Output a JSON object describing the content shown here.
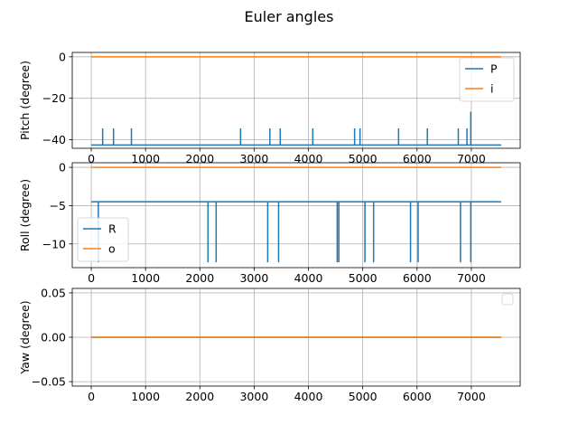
{
  "figure": {
    "title": "Euler angles"
  },
  "colors": {
    "series_blue": "#1f77b4",
    "series_orange": "#ff7f0e",
    "grid": "#b0b0b0"
  },
  "chart_data": [
    {
      "type": "line",
      "ylabel": "Pitch (degree)",
      "xlim": [
        -350,
        7900
      ],
      "ylim": [
        -44.1,
        2.1
      ],
      "xticks": [
        0,
        1000,
        2000,
        3000,
        4000,
        5000,
        6000,
        7000
      ],
      "yticks": [
        0,
        -20,
        -40
      ],
      "xtick_labels": [
        "0",
        "1000",
        "2000",
        "3000",
        "4000",
        "5000",
        "6000",
        "7000"
      ],
      "ytick_labels": [
        "0",
        "−20",
        "−40"
      ],
      "grid": true,
      "legend": {
        "placement": "top-right",
        "entries": [
          "P",
          "i"
        ]
      },
      "series": [
        {
          "name": "P",
          "color": "#1f77b4",
          "base": -42.5,
          "x_range": [
            0,
            7550
          ],
          "spikes": [
            {
              "x": 210,
              "y": -34.5
            },
            {
              "x": 410,
              "y": -34.5
            },
            {
              "x": 740,
              "y": -34.5
            },
            {
              "x": 2750,
              "y": -34.5
            },
            {
              "x": 3290,
              "y": -34.5
            },
            {
              "x": 3480,
              "y": -34.5
            },
            {
              "x": 4080,
              "y": -34.5
            },
            {
              "x": 4850,
              "y": -34.5
            },
            {
              "x": 4950,
              "y": -34.5
            },
            {
              "x": 5660,
              "y": -34.5
            },
            {
              "x": 6190,
              "y": -34.5
            },
            {
              "x": 6760,
              "y": -34.5
            },
            {
              "x": 6920,
              "y": -34.5
            },
            {
              "x": 6990,
              "y": -26.5
            }
          ]
        },
        {
          "name": "i",
          "color": "#ff7f0e",
          "base": 0,
          "x_range": [
            0,
            7550
          ],
          "spikes": []
        }
      ]
    },
    {
      "type": "line",
      "ylabel": "Roll (degree)",
      "xlim": [
        -350,
        7900
      ],
      "ylim": [
        -13.1,
        0.6
      ],
      "xticks": [
        0,
        1000,
        2000,
        3000,
        4000,
        5000,
        6000,
        7000
      ],
      "yticks": [
        0,
        -5,
        -10
      ],
      "xtick_labels": [
        "0",
        "1000",
        "2000",
        "3000",
        "4000",
        "5000",
        "6000",
        "7000"
      ],
      "ytick_labels": [
        "0",
        "−5",
        "−10"
      ],
      "grid": true,
      "legend": {
        "placement": "bottom-left",
        "entries": [
          "R",
          "o"
        ]
      },
      "series": [
        {
          "name": "R",
          "color": "#1f77b4",
          "base": -4.5,
          "x_range": [
            0,
            7550
          ],
          "spikes": [
            {
              "x": 130,
              "y": -12.4
            },
            {
              "x": 2150,
              "y": -12.4
            },
            {
              "x": 2300,
              "y": -12.4
            },
            {
              "x": 3250,
              "y": -12.4
            },
            {
              "x": 3450,
              "y": -12.4
            },
            {
              "x": 4530,
              "y": -12.4
            },
            {
              "x": 4560,
              "y": -12.4
            },
            {
              "x": 5040,
              "y": -12.4
            },
            {
              "x": 5200,
              "y": -12.4
            },
            {
              "x": 5880,
              "y": -12.4
            },
            {
              "x": 6020,
              "y": -12.4
            },
            {
              "x": 6800,
              "y": -12.4
            },
            {
              "x": 6990,
              "y": -12.4
            }
          ]
        },
        {
          "name": "o",
          "color": "#ff7f0e",
          "base": 0,
          "x_range": [
            0,
            7550
          ],
          "spikes": []
        }
      ]
    },
    {
      "type": "line",
      "ylabel": "Yaw (degree)",
      "xlim": [
        -350,
        7900
      ],
      "ylim": [
        -0.055,
        0.055
      ],
      "xticks": [
        0,
        1000,
        2000,
        3000,
        4000,
        5000,
        6000,
        7000
      ],
      "yticks": [
        0.05,
        0.0,
        -0.05
      ],
      "xtick_labels": [
        "0",
        "1000",
        "2000",
        "3000",
        "4000",
        "5000",
        "6000",
        "7000"
      ],
      "ytick_labels": [
        "0.05",
        "0.00",
        "−0.05"
      ],
      "grid": true,
      "legend": {
        "placement": "top-right",
        "entries": []
      },
      "series": [
        {
          "color": "#1f77b4",
          "base": 0,
          "x_range": [
            0,
            7550
          ],
          "spikes": []
        },
        {
          "color": "#ff7f0e",
          "base": 0,
          "x_range": [
            0,
            7550
          ],
          "spikes": []
        }
      ]
    }
  ]
}
